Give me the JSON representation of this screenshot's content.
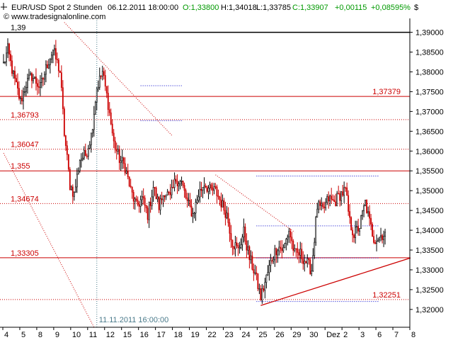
{
  "header": {
    "symbol": "EUR/USD Spot 2 Stunden",
    "datetime": "06.12.2011 18:00:00",
    "open_label": "O:1,33800",
    "high_label": "H:1,34018",
    "low_label": "L:1,33785",
    "close_label": "C:1,33907",
    "change_label": "+0,00115",
    "change_pct_label": "+0,08595%",
    "watermark": "© www.tradesignalonline.com",
    "currency_symbol": "$",
    "marker_icon": "cursor-cross-icon"
  },
  "colors": {
    "up": "#000000",
    "down": "#cc0000",
    "level_line": "#cc0000",
    "level_text": "#cc0000",
    "dotted_blue": "#0000cc",
    "open_green": "#009900",
    "change_green": "#009900",
    "annotation": "#4a7a8a"
  },
  "annotations": {
    "vertical_marker_label": "11.11.2011 16:00:00",
    "top_left_label": "1,39"
  },
  "chart_data": {
    "type": "candlestick",
    "yaxis": {
      "ticks": [
        "1,39000",
        "1,38500",
        "1,38000",
        "1,37500",
        "1,37000",
        "1,36500",
        "1,36000",
        "1,35500",
        "1,35000",
        "1,34500",
        "1,34000",
        "1,33500",
        "1,33000",
        "1,32500",
        "1,32000"
      ],
      "tick_values": [
        1.39,
        1.385,
        1.38,
        1.375,
        1.37,
        1.365,
        1.36,
        1.355,
        1.35,
        1.345,
        1.34,
        1.335,
        1.33,
        1.325,
        1.32
      ],
      "ylim": [
        1.3155,
        1.3935
      ]
    },
    "xaxis": {
      "tick_labels": [
        "4",
        "5",
        "8",
        "9",
        "10",
        "11",
        "12",
        "15",
        "16",
        "17",
        "18",
        "19",
        "22",
        "23",
        "24",
        "25",
        "26",
        "29",
        "30",
        "Dez",
        "2",
        "3",
        "6",
        "7",
        "8"
      ],
      "tick_index": [
        0,
        12,
        24,
        36,
        48,
        60,
        72,
        84,
        96,
        108,
        120,
        132,
        144,
        156,
        168,
        180,
        192,
        204,
        216,
        228,
        240,
        252,
        264,
        276,
        288
      ],
      "bars_total": 288
    },
    "levels": [
      {
        "value": 1.39,
        "label": "1,39",
        "style": "solid-black"
      },
      {
        "value": 1.37379,
        "label": "1,37379",
        "style": "solid-red"
      },
      {
        "value": 1.36793,
        "label": "1,36793",
        "style": "dotted-red"
      },
      {
        "value": 1.36047,
        "label": "1,36047",
        "style": "dotted-red"
      },
      {
        "value": 1.355,
        "label": "1,355",
        "style": "solid-red"
      },
      {
        "value": 1.34674,
        "label": "1,34674",
        "style": "dotted-red"
      },
      {
        "value": 1.33305,
        "label": "1,33305",
        "style": "solid-red"
      },
      {
        "value": 1.32251,
        "label": "1,32251",
        "style": "dotted-red"
      }
    ],
    "trendlines": [
      {
        "style": "dotted-red",
        "from": [
          0,
          1.3595
        ],
        "to": [
          64,
          1.3155
        ]
      },
      {
        "style": "dotted-red",
        "from": [
          43,
          1.3925
        ],
        "to": [
          119,
          1.364
        ]
      },
      {
        "style": "dotted-red",
        "from": [
          150,
          1.354
        ],
        "to": [
          206,
          1.3395
        ]
      },
      {
        "style": "solid-red",
        "from": [
          182,
          1.321
        ],
        "to": [
          288,
          1.333
        ]
      }
    ],
    "dotted_segments": [
      {
        "value": 1.3765,
        "from": 97,
        "to": 127
      },
      {
        "value": 1.3677,
        "from": 97,
        "to": 127
      },
      {
        "value": 1.3537,
        "from": 179,
        "to": 266
      },
      {
        "value": 1.3411,
        "from": 179,
        "to": 266
      },
      {
        "value": 1.333,
        "from": 179,
        "to": 266
      },
      {
        "value": 1.322,
        "from": 179,
        "to": 266
      }
    ],
    "marker_index": 66,
    "keypoints": [
      [
        0,
        1.382
      ],
      [
        3,
        1.3855
      ],
      [
        7,
        1.379
      ],
      [
        12,
        1.3725
      ],
      [
        16,
        1.377
      ],
      [
        20,
        1.379
      ],
      [
        26,
        1.376
      ],
      [
        31,
        1.382
      ],
      [
        35,
        1.3855
      ],
      [
        40,
        1.38
      ],
      [
        43,
        1.3645
      ],
      [
        47,
        1.3515
      ],
      [
        50,
        1.349
      ],
      [
        54,
        1.358
      ],
      [
        58,
        1.359
      ],
      [
        62,
        1.364
      ],
      [
        66,
        1.376
      ],
      [
        70,
        1.38
      ],
      [
        74,
        1.372
      ],
      [
        78,
        1.362
      ],
      [
        82,
        1.358
      ],
      [
        86,
        1.356
      ],
      [
        90,
        1.35
      ],
      [
        94,
        1.346
      ],
      [
        98,
        1.348
      ],
      [
        102,
        1.344
      ],
      [
        106,
        1.351
      ],
      [
        110,
        1.346
      ],
      [
        114,
        1.35
      ],
      [
        118,
        1.348
      ],
      [
        122,
        1.353
      ],
      [
        126,
        1.352
      ],
      [
        130,
        1.347
      ],
      [
        134,
        1.344
      ],
      [
        138,
        1.349
      ],
      [
        142,
        1.352
      ],
      [
        146,
        1.35
      ],
      [
        150,
        1.35
      ],
      [
        154,
        1.347
      ],
      [
        158,
        1.344
      ],
      [
        162,
        1.337
      ],
      [
        166,
        1.335
      ],
      [
        170,
        1.3395
      ],
      [
        174,
        1.333
      ],
      [
        178,
        1.329
      ],
      [
        182,
        1.323
      ],
      [
        186,
        1.328
      ],
      [
        190,
        1.333
      ],
      [
        194,
        1.336
      ],
      [
        198,
        1.335
      ],
      [
        202,
        1.34
      ],
      [
        206,
        1.334
      ],
      [
        210,
        1.334
      ],
      [
        214,
        1.332
      ],
      [
        218,
        1.33
      ],
      [
        222,
        1.346
      ],
      [
        226,
        1.345
      ],
      [
        230,
        1.348
      ],
      [
        234,
        1.347
      ],
      [
        238,
        1.349
      ],
      [
        242,
        1.35
      ],
      [
        245,
        1.342
      ],
      [
        248,
        1.339
      ],
      [
        252,
        1.341
      ],
      [
        256,
        1.347
      ],
      [
        259,
        1.342
      ],
      [
        262,
        1.338
      ],
      [
        265,
        1.338
      ],
      [
        268,
        1.339
      ],
      [
        270,
        1.3391
      ]
    ]
  }
}
